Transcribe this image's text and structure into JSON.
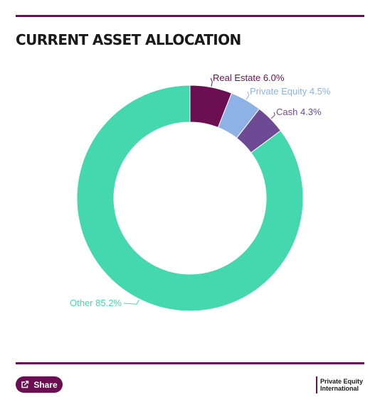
{
  "header": {
    "title": "CURRENT ASSET ALLOCATION"
  },
  "chart_data": {
    "type": "pie",
    "variant": "donut",
    "title": "CURRENT ASSET ALLOCATION",
    "categories": [
      "Real Estate",
      "Private Equity",
      "Cash",
      "Other"
    ],
    "values": [
      6.0,
      4.5,
      4.3,
      85.2
    ],
    "labels": [
      "Real Estate 6.0%",
      "Private Equity 4.5%",
      "Cash 4.3%",
      "Other 85.2%"
    ],
    "colors": [
      "#6b0f52",
      "#8eb1e6",
      "#6e4a94",
      "#45d8ae"
    ],
    "value_suffix": "%",
    "legend": "none"
  },
  "footer": {
    "share_label": "Share",
    "share_icon": "share-icon",
    "brand_line1": "Private Equity",
    "brand_line2": "International"
  }
}
